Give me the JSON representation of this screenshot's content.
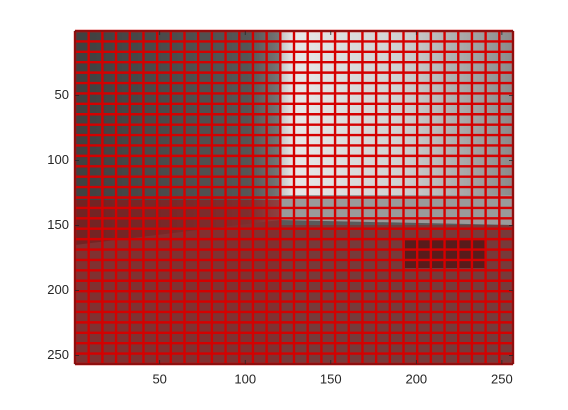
{
  "chart_data": {
    "type": "image",
    "xlim": [
      0.5,
      256.5
    ],
    "ylim": [
      0.5,
      256.5
    ],
    "y_reversed": true,
    "xticks": [
      50,
      100,
      150,
      200,
      250
    ],
    "yticks": [
      50,
      100,
      150,
      200,
      250
    ]
  }
}
